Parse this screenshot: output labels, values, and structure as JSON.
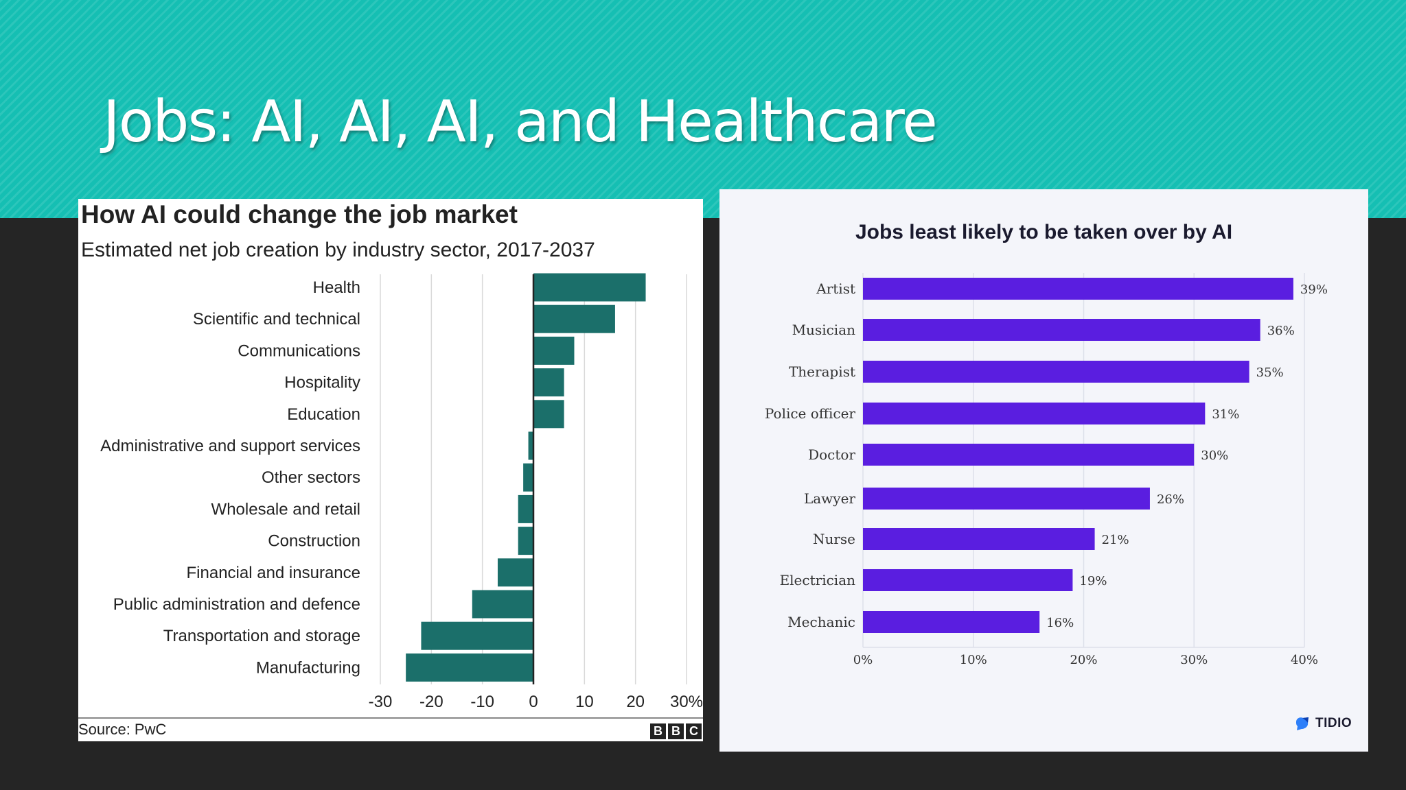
{
  "slide": {
    "title": "Jobs: AI, AI, AI, and Healthcare"
  },
  "colors": {
    "banner": "#15bfb3",
    "background": "#252525",
    "bbc_bar": "#1b6f6a",
    "tidio_bar": "#5a1ee0"
  },
  "chart_data": [
    {
      "type": "bar",
      "orientation": "horizontal",
      "title": "How AI could change the job market",
      "subtitle": "Estimated net job creation by industry sector, 2017-2037",
      "categories": [
        "Health",
        "Scientific and technical",
        "Communications",
        "Hospitality",
        "Education",
        "Administrative and support services",
        "Other sectors",
        "Wholesale and retail",
        "Construction",
        "Financial and insurance",
        "Public administration and defence",
        "Transportation and storage",
        "Manufacturing"
      ],
      "values": [
        22,
        16,
        8,
        6,
        6,
        -1,
        -2,
        -3,
        -3,
        -7,
        -12,
        -22,
        -25
      ],
      "xlim": [
        -30,
        30
      ],
      "ticks": [
        -30,
        -20,
        -10,
        0,
        10,
        20,
        30
      ],
      "tick_labels": [
        "-30",
        "-20",
        "-10",
        "0",
        "10",
        "20",
        "30%"
      ],
      "grid": true,
      "source": "Source: PwC",
      "logo": [
        "B",
        "B",
        "C"
      ]
    },
    {
      "type": "bar",
      "orientation": "horizontal",
      "title": "Jobs least likely to be taken over by AI",
      "categories": [
        "Artist",
        "Musician",
        "Therapist",
        "Police officer",
        "Doctor",
        "Lawyer",
        "Nurse",
        "Electrician",
        "Mechanic"
      ],
      "values": [
        39,
        36,
        35,
        31,
        30,
        26,
        21,
        19,
        16
      ],
      "value_labels": [
        "39%",
        "36%",
        "35%",
        "31%",
        "30%",
        "26%",
        "21%",
        "19%",
        "16%"
      ],
      "xlim": [
        0,
        40
      ],
      "ticks": [
        0,
        10,
        20,
        30,
        40
      ],
      "tick_labels": [
        "0%",
        "10%",
        "20%",
        "30%",
        "40%"
      ],
      "grid": true,
      "logo": "TIDIO"
    }
  ]
}
